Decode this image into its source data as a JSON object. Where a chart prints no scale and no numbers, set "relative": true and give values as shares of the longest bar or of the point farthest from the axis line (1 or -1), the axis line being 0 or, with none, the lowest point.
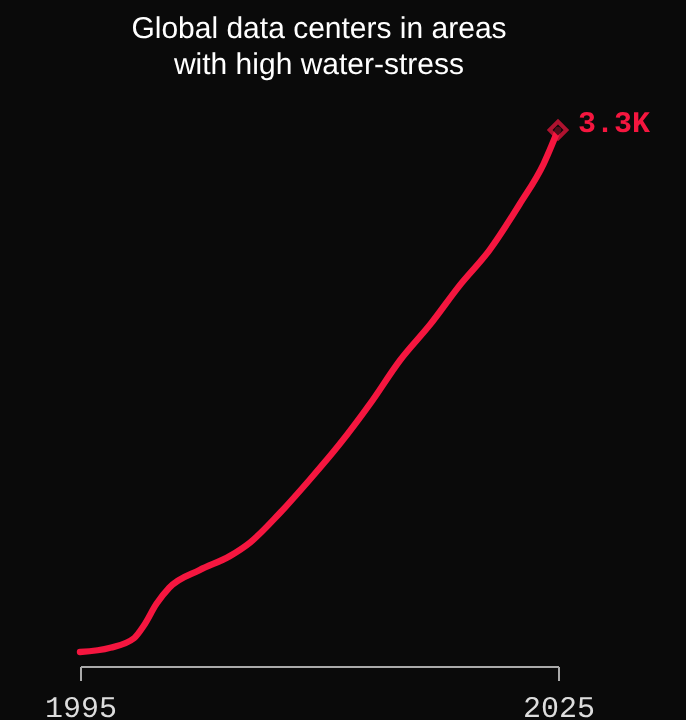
{
  "chart_data": {
    "type": "line",
    "title": "Global data centers in areas with high water-stress",
    "x": [
      1995,
      1996.9,
      1998.4,
      1999.0,
      1999.8,
      2000.6,
      2002.5,
      2004.4,
      2005.7,
      2007.5,
      2009.4,
      2011.3,
      2013.2,
      2015.1,
      2017.0,
      2018.8,
      2020.7,
      2022.6,
      2024.1,
      2025
    ],
    "series": [
      {
        "color": "#f5163f",
        "values": [
          0.026,
          0.034,
          0.052,
          0.075,
          0.116,
          0.146,
          0.179,
          0.205,
          0.231,
          0.284,
          0.347,
          0.414,
          0.489,
          0.571,
          0.638,
          0.709,
          0.776,
          0.862,
          0.937,
          1.0
        ]
      }
    ],
    "annotations": [
      {
        "text": "3.3K",
        "x": 2025,
        "y": 1.0
      }
    ],
    "relative": true,
    "xlim": [
      1995,
      2025
    ],
    "xticks": [
      1995,
      2025
    ],
    "grid": false,
    "line_style": "solid"
  }
}
